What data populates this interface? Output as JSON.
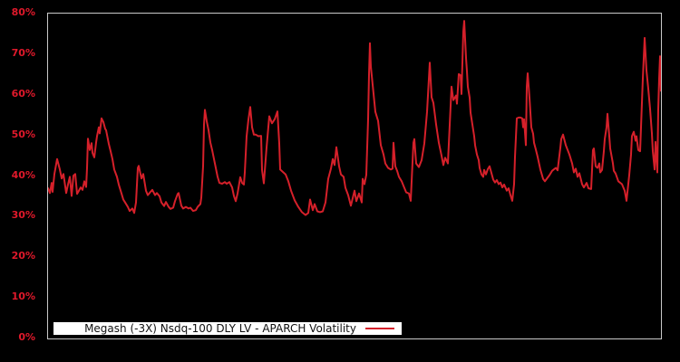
{
  "colors": {
    "background": "#000000",
    "line": "#d5202a",
    "tick_label": "#e0192b",
    "plot_border": "#c9c9c9",
    "legend_background": "#ffffff",
    "legend_text": "#111111"
  },
  "legend": {
    "label": "Megash (-3X) Nsdq-100 DLY LV - APARCH Volatility"
  },
  "chart_data": {
    "type": "line",
    "title": "",
    "xlabel": "",
    "ylabel": "",
    "ylim": [
      0,
      80
    ],
    "yticks": [
      "0%",
      "10%",
      "20%",
      "30%",
      "40%",
      "50%",
      "60%",
      "70%",
      "80%"
    ],
    "xticks": [],
    "grid": false,
    "legend_position": "bottom-left-inside",
    "series": [
      {
        "name": "Megash (-3X) Nsdq-100 DLY LV - APARCH Volatility",
        "units": "percent",
        "points": [
          [
            52,
            37.0
          ],
          [
            54,
            35.8
          ],
          [
            56,
            38.3
          ],
          [
            57,
            36.1
          ],
          [
            59,
            40.5
          ],
          [
            62,
            44.2
          ],
          [
            65,
            41.6
          ],
          [
            67,
            39.4
          ],
          [
            69,
            40.5
          ],
          [
            72,
            35.8
          ],
          [
            74,
            37.9
          ],
          [
            76,
            39.8
          ],
          [
            78,
            35.1
          ],
          [
            80,
            40.1
          ],
          [
            82,
            40.5
          ],
          [
            84,
            35.6
          ],
          [
            86,
            36.4
          ],
          [
            88,
            37.2
          ],
          [
            90,
            36.6
          ],
          [
            92,
            38.7
          ],
          [
            94,
            37.3
          ],
          [
            95,
            42.0
          ],
          [
            96,
            49.2
          ],
          [
            98,
            46.4
          ],
          [
            100,
            48.1
          ],
          [
            101,
            45.7
          ],
          [
            103,
            44.6
          ],
          [
            105,
            48.3
          ],
          [
            106,
            49.8
          ],
          [
            108,
            52.0
          ],
          [
            109,
            50.5
          ],
          [
            111,
            54.2
          ],
          [
            113,
            53.3
          ],
          [
            115,
            51.6
          ],
          [
            116,
            51.3
          ],
          [
            119,
            47.9
          ],
          [
            121,
            46.1
          ],
          [
            123,
            44.2
          ],
          [
            125,
            41.6
          ],
          [
            128,
            39.8
          ],
          [
            130,
            37.9
          ],
          [
            133,
            35.7
          ],
          [
            135,
            34.2
          ],
          [
            137,
            33.5
          ],
          [
            140,
            32.4
          ],
          [
            142,
            31.4
          ],
          [
            145,
            32.0
          ],
          [
            147,
            30.9
          ],
          [
            149,
            33.5
          ],
          [
            151,
            42.0
          ],
          [
            152,
            42.5
          ],
          [
            155,
            39.4
          ],
          [
            157,
            40.5
          ],
          [
            160,
            36.4
          ],
          [
            162,
            35.3
          ],
          [
            165,
            36.1
          ],
          [
            167,
            36.6
          ],
          [
            170,
            35.3
          ],
          [
            172,
            35.8
          ],
          [
            175,
            35.0
          ],
          [
            177,
            33.5
          ],
          [
            180,
            32.6
          ],
          [
            182,
            33.6
          ],
          [
            185,
            32.4
          ],
          [
            187,
            31.9
          ],
          [
            190,
            32.2
          ],
          [
            192,
            33.8
          ],
          [
            195,
            35.6
          ],
          [
            196,
            35.8
          ],
          [
            199,
            32.7
          ],
          [
            201,
            32.0
          ],
          [
            204,
            32.4
          ],
          [
            207,
            32.0
          ],
          [
            209,
            32.2
          ],
          [
            212,
            31.4
          ],
          [
            215,
            31.6
          ],
          [
            217,
            32.4
          ],
          [
            220,
            33.1
          ],
          [
            221,
            34.6
          ],
          [
            223,
            42.4
          ],
          [
            224,
            52.7
          ],
          [
            225,
            56.3
          ],
          [
            227,
            53.5
          ],
          [
            229,
            51.3
          ],
          [
            231,
            48.3
          ],
          [
            233,
            46.4
          ],
          [
            235,
            44.2
          ],
          [
            237,
            42.0
          ],
          [
            239,
            39.8
          ],
          [
            241,
            38.3
          ],
          [
            244,
            38.1
          ],
          [
            247,
            38.5
          ],
          [
            249,
            38.1
          ],
          [
            252,
            38.5
          ],
          [
            255,
            37.2
          ],
          [
            257,
            35.1
          ],
          [
            259,
            33.8
          ],
          [
            261,
            35.7
          ],
          [
            264,
            39.7
          ],
          [
            266,
            38.3
          ],
          [
            268,
            37.9
          ],
          [
            269,
            40.9
          ],
          [
            271,
            49.8
          ],
          [
            273,
            53.9
          ],
          [
            275,
            57.0
          ],
          [
            277,
            52.0
          ],
          [
            279,
            50.2
          ],
          [
            281,
            50.2
          ],
          [
            284,
            49.8
          ],
          [
            287,
            49.9
          ],
          [
            288,
            41.5
          ],
          [
            290,
            38.2
          ],
          [
            293,
            47.0
          ],
          [
            296,
            54.7
          ],
          [
            299,
            53.0
          ],
          [
            302,
            54.0
          ],
          [
            305,
            55.9
          ],
          [
            307,
            48.0
          ],
          [
            308,
            41.6
          ],
          [
            311,
            41.0
          ],
          [
            314,
            40.4
          ],
          [
            317,
            38.7
          ],
          [
            320,
            36.4
          ],
          [
            324,
            34.0
          ],
          [
            328,
            32.4
          ],
          [
            332,
            31.1
          ],
          [
            336,
            30.4
          ],
          [
            339,
            30.9
          ],
          [
            341,
            34.2
          ],
          [
            344,
            31.6
          ],
          [
            346,
            33.1
          ],
          [
            349,
            31.3
          ],
          [
            352,
            31.1
          ],
          [
            355,
            31.3
          ],
          [
            358,
            33.5
          ],
          [
            361,
            39.3
          ],
          [
            364,
            41.8
          ],
          [
            366,
            44.2
          ],
          [
            368,
            42.7
          ],
          [
            370,
            47.1
          ],
          [
            373,
            42.4
          ],
          [
            375,
            40.4
          ],
          [
            378,
            39.8
          ],
          [
            380,
            37.1
          ],
          [
            383,
            35.3
          ],
          [
            386,
            32.7
          ],
          [
            390,
            36.4
          ],
          [
            392,
            33.8
          ],
          [
            395,
            35.7
          ],
          [
            398,
            33.5
          ],
          [
            399,
            39.3
          ],
          [
            401,
            38.0
          ],
          [
            403,
            40.3
          ],
          [
            405,
            54.0
          ],
          [
            406,
            65.0
          ],
          [
            407,
            72.7
          ],
          [
            408,
            67.0
          ],
          [
            410,
            62.5
          ],
          [
            413,
            55.8
          ],
          [
            416,
            53.6
          ],
          [
            419,
            47.6
          ],
          [
            422,
            45.3
          ],
          [
            424,
            43.1
          ],
          [
            427,
            42.0
          ],
          [
            430,
            41.6
          ],
          [
            432,
            41.8
          ],
          [
            433,
            48.2
          ],
          [
            435,
            42.4
          ],
          [
            437,
            41.3
          ],
          [
            439,
            39.8
          ],
          [
            442,
            38.7
          ],
          [
            444,
            37.6
          ],
          [
            447,
            36.0
          ],
          [
            450,
            35.7
          ],
          [
            452,
            33.9
          ],
          [
            455,
            48.2
          ],
          [
            456,
            49.1
          ],
          [
            458,
            43.1
          ],
          [
            461,
            42.2
          ],
          [
            464,
            43.9
          ],
          [
            467,
            48.0
          ],
          [
            470,
            55.8
          ],
          [
            473,
            67.9
          ],
          [
            475,
            59.4
          ],
          [
            477,
            58.0
          ],
          [
            480,
            52.7
          ],
          [
            483,
            48.2
          ],
          [
            486,
            45.0
          ],
          [
            488,
            42.7
          ],
          [
            490,
            44.5
          ],
          [
            493,
            43.1
          ],
          [
            497,
            62.0
          ],
          [
            499,
            58.7
          ],
          [
            502,
            59.8
          ],
          [
            503,
            57.8
          ],
          [
            505,
            65.1
          ],
          [
            507,
            64.8
          ],
          [
            508,
            60.2
          ],
          [
            510,
            75.6
          ],
          [
            511,
            78.2
          ],
          [
            513,
            69.1
          ],
          [
            514,
            65.8
          ],
          [
            515,
            62.0
          ],
          [
            517,
            59.3
          ],
          [
            518,
            55.6
          ],
          [
            520,
            52.7
          ],
          [
            522,
            49.8
          ],
          [
            523,
            47.6
          ],
          [
            525,
            45.3
          ],
          [
            527,
            43.9
          ],
          [
            528,
            42.0
          ],
          [
            530,
            40.4
          ],
          [
            532,
            39.8
          ],
          [
            533,
            41.5
          ],
          [
            535,
            40.4
          ],
          [
            537,
            41.7
          ],
          [
            539,
            42.4
          ],
          [
            543,
            39.1
          ],
          [
            545,
            38.4
          ],
          [
            547,
            39.0
          ],
          [
            549,
            38.0
          ],
          [
            551,
            38.4
          ],
          [
            553,
            37.2
          ],
          [
            555,
            37.9
          ],
          [
            558,
            36.4
          ],
          [
            560,
            37.0
          ],
          [
            562,
            35.3
          ],
          [
            564,
            33.9
          ],
          [
            566,
            38.0
          ],
          [
            567,
            44.7
          ],
          [
            569,
            54.2
          ],
          [
            571,
            54.4
          ],
          [
            573,
            54.4
          ],
          [
            575,
            54.2
          ],
          [
            576,
            52.0
          ],
          [
            577,
            54.0
          ],
          [
            579,
            47.6
          ],
          [
            580,
            62.0
          ],
          [
            581,
            65.3
          ],
          [
            583,
            59.3
          ],
          [
            585,
            52.0
          ],
          [
            587,
            50.4
          ],
          [
            588,
            48.2
          ],
          [
            590,
            46.5
          ],
          [
            592,
            44.7
          ],
          [
            595,
            41.6
          ],
          [
            598,
            39.3
          ],
          [
            600,
            38.7
          ],
          [
            602,
            39.3
          ],
          [
            605,
            40.2
          ],
          [
            608,
            41.3
          ],
          [
            612,
            42.0
          ],
          [
            614,
            41.4
          ],
          [
            617,
            46.9
          ],
          [
            618,
            49.1
          ],
          [
            620,
            50.2
          ],
          [
            623,
            47.6
          ],
          [
            627,
            45.3
          ],
          [
            630,
            43.1
          ],
          [
            632,
            40.9
          ],
          [
            634,
            41.8
          ],
          [
            636,
            39.8
          ],
          [
            638,
            40.7
          ],
          [
            641,
            38.0
          ],
          [
            643,
            37.2
          ],
          [
            646,
            38.3
          ],
          [
            648,
            37.0
          ],
          [
            651,
            36.8
          ],
          [
            653,
            46.4
          ],
          [
            654,
            46.8
          ],
          [
            656,
            42.4
          ],
          [
            658,
            42.0
          ],
          [
            660,
            43.1
          ],
          [
            661,
            40.9
          ],
          [
            663,
            41.5
          ],
          [
            665,
            46.1
          ],
          [
            666,
            49.1
          ],
          [
            668,
            52.0
          ],
          [
            669,
            55.3
          ],
          [
            671,
            49.8
          ],
          [
            672,
            46.8
          ],
          [
            675,
            43.1
          ],
          [
            676,
            41.3
          ],
          [
            678,
            40.6
          ],
          [
            681,
            38.7
          ],
          [
            685,
            38.0
          ],
          [
            688,
            36.4
          ],
          [
            690,
            33.9
          ],
          [
            693,
            40.2
          ],
          [
            695,
            45.3
          ],
          [
            696,
            49.8
          ],
          [
            698,
            50.9
          ],
          [
            700,
            48.7
          ],
          [
            701,
            49.8
          ],
          [
            703,
            46.4
          ],
          [
            705,
            46.1
          ],
          [
            706,
            52.0
          ],
          [
            708,
            64.0
          ],
          [
            710,
            74.0
          ],
          [
            712,
            66.0
          ],
          [
            714,
            61.5
          ],
          [
            716,
            56.5
          ],
          [
            718,
            50.5
          ],
          [
            719,
            46.1
          ],
          [
            721,
            41.6
          ],
          [
            722,
            48.4
          ],
          [
            724,
            40.9
          ],
          [
            725,
            56.4
          ],
          [
            726,
            64.0
          ],
          [
            727,
            69.5
          ],
          [
            728,
            61.0
          ]
        ]
      }
    ]
  }
}
